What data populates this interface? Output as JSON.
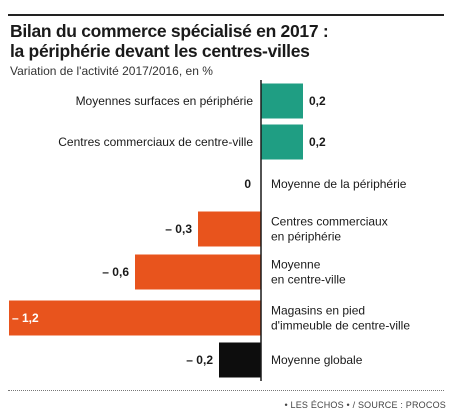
{
  "header": {
    "title": "Bilan du commerce spécialisé en 2017 :\nla périphérie devant les centres-villes",
    "subtitle": "Variation de l'activité 2017/2016, en %"
  },
  "footer": {
    "source": "• LES ÉCHOS • / SOURCE : PROCOS"
  },
  "colors": {
    "positive": "#1f9e83",
    "negative": "#e8541d",
    "total": "#0d0d0d",
    "axis": "#1a1a1a"
  },
  "chart_data": {
    "type": "bar",
    "orientation": "horizontal",
    "title": "Bilan du commerce spécialisé en 2017 : la périphérie devant les centres-villes",
    "subtitle": "Variation de l'activité 2017/2016, en %",
    "categories": [
      "Moyennes surfaces en périphérie",
      "Centres commerciaux de centre-ville",
      "Moyenne de la périphérie",
      "Centres commerciaux\nen périphérie",
      "Moyenne\nen centre-ville",
      "Magasins en pied\nd'immeuble de centre-ville",
      "Moyenne globale"
    ],
    "values": [
      0.2,
      0.2,
      0,
      -0.3,
      -0.6,
      -1.2,
      -0.2
    ],
    "value_labels": [
      "0,2",
      "0,2",
      "0",
      "– 0,3",
      "– 0,6",
      "– 1,2",
      "– 0,2"
    ],
    "bar_colors": [
      "#1f9e83",
      "#1f9e83",
      "#1f9e83",
      "#e8541d",
      "#e8541d",
      "#e8541d",
      "#0d0d0d"
    ],
    "xlim": [
      -1.2,
      0.2
    ],
    "grid": false,
    "legend": "none"
  }
}
